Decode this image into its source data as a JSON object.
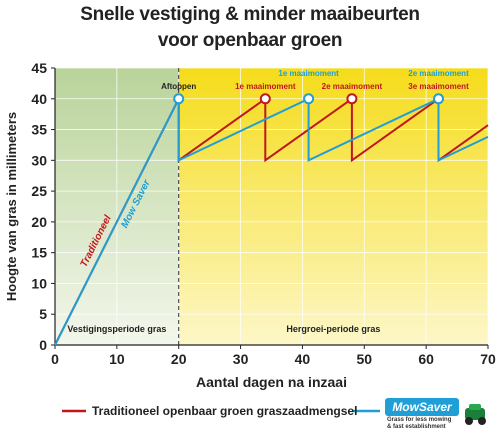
{
  "title": "Snelle vestiging & minder maaibeurten",
  "subtitle": "voor openbaar groen",
  "colors": {
    "traditional": "#c0171d",
    "mowsaver": "#1f9fd6",
    "establish_bg": "#cfe0b8",
    "regrowth_bg": "#f7e43a"
  },
  "chart_data": {
    "type": "line",
    "xlabel": "Aantal dagen na inzaai",
    "ylabel": "Hoogte van gras in millimeters",
    "xlim": [
      0,
      70
    ],
    "ylim": [
      0,
      45
    ],
    "xticks": [
      0,
      10,
      20,
      30,
      40,
      50,
      60,
      70
    ],
    "yticks": [
      0,
      5,
      10,
      15,
      20,
      25,
      30,
      35,
      40,
      45
    ],
    "regions": [
      {
        "label": "Vestigingsperiode gras",
        "x0": 0,
        "x1": 20
      },
      {
        "label": "Hergroei-periode gras",
        "x0": 20,
        "x1": 70
      }
    ],
    "series": [
      {
        "name": "Traditioneel",
        "color": "#c0171d",
        "points": [
          [
            0,
            0
          ],
          [
            20,
            40
          ],
          [
            20,
            30
          ],
          [
            34,
            40
          ],
          [
            34,
            30
          ],
          [
            48,
            40
          ],
          [
            48,
            30
          ],
          [
            62,
            40
          ],
          [
            62,
            30
          ],
          [
            70,
            35.7
          ]
        ]
      },
      {
        "name": "Mow Saver",
        "color": "#1f9fd6",
        "points": [
          [
            0,
            0
          ],
          [
            20,
            40
          ],
          [
            20,
            30
          ],
          [
            41,
            40
          ],
          [
            41,
            30
          ],
          [
            62,
            40
          ],
          [
            62,
            30
          ],
          [
            70,
            33.8
          ]
        ]
      }
    ],
    "annotations": [
      {
        "text": "Aftoppen",
        "x": 20,
        "y": 40,
        "color": "#222222"
      },
      {
        "text": "1e maaimoment",
        "x": 34,
        "y": 40,
        "color": "#c0171d",
        "line": 1
      },
      {
        "text": "1e maaimoment",
        "x": 41,
        "y": 40,
        "color": "#1f9fd6",
        "line": 0
      },
      {
        "text": "2e maaimoment",
        "x": 48,
        "y": 40,
        "color": "#c0171d",
        "line": 1
      },
      {
        "text": "2e maaimoment",
        "x": 62,
        "y": 40,
        "color": "#1f9fd6",
        "line": 0
      },
      {
        "text": "3e maaimoment",
        "x": 62,
        "y": 40,
        "color": "#c0171d",
        "line": 1
      }
    ],
    "markers": [
      {
        "x": 20,
        "y": 40,
        "series": "Mow Saver"
      },
      {
        "x": 34,
        "y": 40,
        "series": "Traditioneel"
      },
      {
        "x": 41,
        "y": 40,
        "series": "Mow Saver"
      },
      {
        "x": 48,
        "y": 40,
        "series": "Traditioneel"
      },
      {
        "x": 62,
        "y": 40,
        "series": "Mow Saver"
      }
    ],
    "line_labels": [
      {
        "text": "Traditioneel",
        "series": "Traditioneel"
      },
      {
        "text": "Mow Saver",
        "series": "Mow Saver"
      }
    ],
    "grid": true
  },
  "legend": {
    "traditional_label": "Traditioneel openbaar groen graszaadmengsel",
    "brand_name": "MowSaver",
    "brand_tagline_1": "Grass for less mowing",
    "brand_tagline_2": "& fast establishment"
  }
}
